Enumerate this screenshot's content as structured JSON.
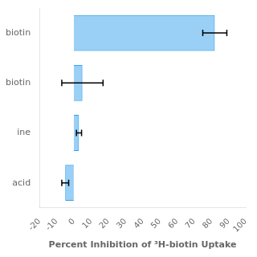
{
  "chart_data": {
    "type": "bar",
    "orientation": "horizontal",
    "categories": [
      "biotin",
      "biotin",
      "ine",
      "acid"
    ],
    "values": [
      82,
      5,
      3,
      -5
    ],
    "errors": [
      7,
      12,
      1.5,
      2
    ],
    "xlabel": "Percent Inhibition of ³H-biotin Uptake",
    "xlim": [
      -20,
      100
    ],
    "xticks": [
      -20,
      -10,
      0,
      10,
      20,
      30,
      40,
      50,
      60,
      70,
      80,
      90,
      100
    ],
    "grid": false
  }
}
